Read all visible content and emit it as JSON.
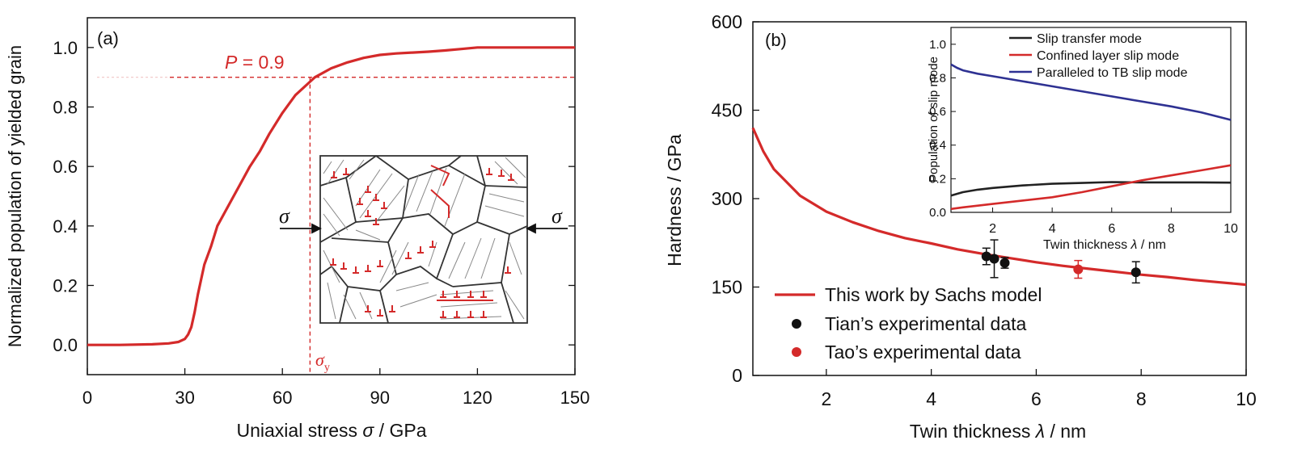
{
  "chart_data": [
    {
      "type": "line",
      "panel_label": "(a)",
      "xlabel_prefix": "Uniaxial stress ",
      "xlabel_symbol": "σ",
      "xlabel_suffix": " / GPa",
      "ylabel": "Normalized population of yielded grain",
      "xlim": [
        0,
        150
      ],
      "ylim": [
        -0.1,
        1.1
      ],
      "xticks": [
        "0",
        "30",
        "60",
        "90",
        "120",
        "150"
      ],
      "yticks": [
        "0.0",
        "0.2",
        "0.4",
        "0.6",
        "0.8",
        "1.0"
      ],
      "series": [
        {
          "color": "#d42a2a",
          "x": [
            0,
            10,
            20,
            25,
            28,
            30,
            31,
            32,
            33,
            34,
            35,
            36,
            38,
            40,
            42,
            45,
            48,
            50,
            53,
            56,
            60,
            64,
            68,
            70,
            75,
            80,
            85,
            90,
            95,
            100,
            105,
            110,
            115,
            120,
            130,
            140,
            150
          ],
          "y": [
            0,
            0,
            0.002,
            0.005,
            0.01,
            0.02,
            0.035,
            0.06,
            0.11,
            0.17,
            0.22,
            0.27,
            0.33,
            0.4,
            0.44,
            0.5,
            0.56,
            0.6,
            0.65,
            0.71,
            0.78,
            0.84,
            0.88,
            0.9,
            0.93,
            0.95,
            0.965,
            0.975,
            0.98,
            0.983,
            0.986,
            0.99,
            0.995,
            1.0,
            1.0,
            1.0,
            1.0
          ]
        }
      ],
      "annotation_p_label": "P",
      "annotation_p_value": " = 0.9",
      "p_level": 0.9,
      "sigma_y_x": 68.5,
      "sigma_y_symbol": "σ",
      "sigma_y_sub": "y",
      "inset_sigma_left": "σ",
      "inset_sigma_right": "σ",
      "accent_color": "#d42a2a"
    },
    {
      "type": "line",
      "panel_label": "(b)",
      "xlabel_prefix": "Twin thickness ",
      "xlabel_symbol": "λ",
      "xlabel_suffix": " / nm",
      "ylabel": "Hardness  / GPa",
      "xlim": [
        0.6,
        10
      ],
      "ylim": [
        0,
        600
      ],
      "xticks": [
        2,
        4,
        6,
        8,
        10
      ],
      "yticks": [
        0,
        150,
        300,
        450,
        600
      ],
      "series": [
        {
          "name": "This work by Sachs model",
          "color": "#d42a2a",
          "x": [
            0.6,
            0.8,
            1.0,
            1.5,
            2.0,
            2.5,
            3.0,
            3.5,
            4.0,
            4.5,
            5.0,
            5.5,
            6.0,
            6.5,
            7.0,
            7.5,
            8.0,
            8.5,
            9.0,
            9.5,
            10.0
          ],
          "y": [
            420,
            380,
            350,
            305,
            278,
            260,
            245,
            233,
            224,
            214,
            206,
            199,
            192,
            186,
            181,
            176,
            171,
            167,
            162,
            158,
            154
          ]
        }
      ],
      "scatter": [
        {
          "name": "Tian’s experimental data",
          "color": "#111111",
          "points": [
            {
              "x": 5.05,
              "y": 202,
              "err": 14
            },
            {
              "x": 5.2,
              "y": 198,
              "err": 32
            },
            {
              "x": 5.4,
              "y": 191,
              "err": 9
            },
            {
              "x": 7.9,
              "y": 175,
              "err": 18
            }
          ]
        },
        {
          "name": "Tao’s experimental data",
          "color": "#d42a2a",
          "points": [
            {
              "x": 6.8,
              "y": 180,
              "err": 15
            }
          ]
        }
      ],
      "inset": {
        "xlabel_prefix": "Twin thickness ",
        "xlabel_symbol": "λ",
        "xlabel_suffix": " / nm",
        "ylabel": "Population of slip mode",
        "xlim": [
          0.6,
          10
        ],
        "ylim": [
          0,
          1.1
        ],
        "xticks": [
          2,
          4,
          6,
          8,
          10
        ],
        "yticks": [
          "0.0",
          "0.2",
          "0.4",
          "0.6",
          "0.8",
          "1.0"
        ],
        "series": [
          {
            "name": "Slip transfer mode",
            "color": "#222222",
            "x": [
              0.6,
              1.0,
              1.5,
              2.0,
              3.0,
              4.0,
              5.0,
              6.0,
              7.0,
              8.0,
              9.0,
              10.0
            ],
            "y": [
              0.1,
              0.12,
              0.135,
              0.145,
              0.16,
              0.17,
              0.175,
              0.18,
              0.178,
              0.178,
              0.178,
              0.177
            ]
          },
          {
            "name": "Confined layer slip mode",
            "color": "#d42a2a",
            "x": [
              0.6,
              1.0,
              2.0,
              3.0,
              4.0,
              5.0,
              6.0,
              7.0,
              8.0,
              9.0,
              10.0
            ],
            "y": [
              0.02,
              0.03,
              0.05,
              0.07,
              0.09,
              0.12,
              0.155,
              0.19,
              0.22,
              0.25,
              0.28
            ]
          },
          {
            "name": "Paralleled to TB slip mode",
            "color": "#2e3192",
            "x": [
              0.6,
              0.8,
              1.0,
              1.5,
              2.0,
              3.0,
              4.0,
              5.0,
              6.0,
              7.0,
              8.0,
              9.0,
              10.0
            ],
            "y": [
              0.88,
              0.86,
              0.845,
              0.825,
              0.81,
              0.78,
              0.75,
              0.72,
              0.69,
              0.66,
              0.63,
              0.595,
              0.55
            ]
          }
        ]
      }
    }
  ]
}
